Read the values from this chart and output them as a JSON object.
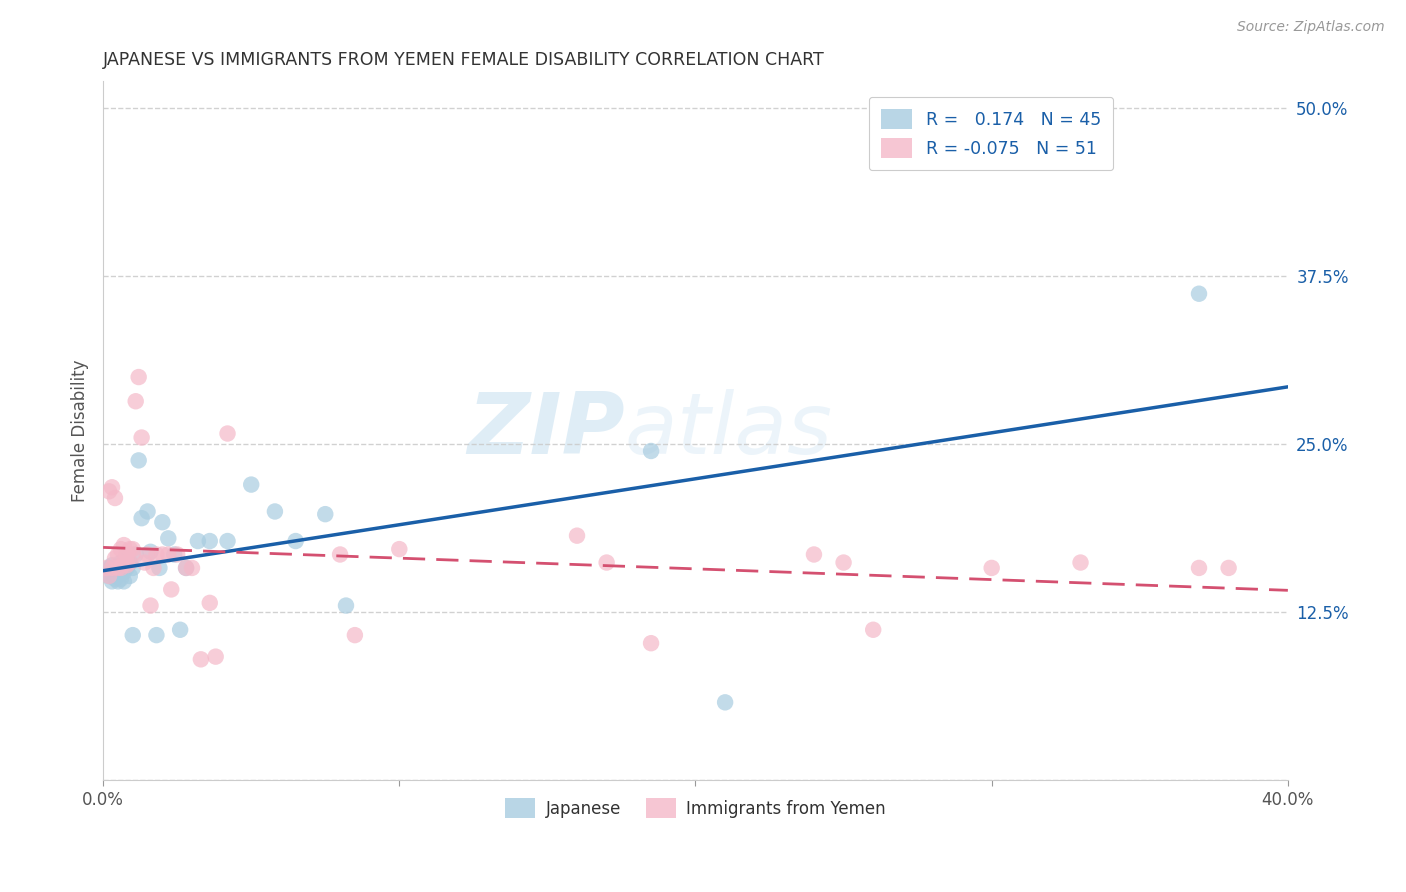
{
  "title": "JAPANESE VS IMMIGRANTS FROM YEMEN FEMALE DISABILITY CORRELATION CHART",
  "source": "Source: ZipAtlas.com",
  "ylabel": "Female Disability",
  "yticks": [
    0.0,
    0.125,
    0.25,
    0.375,
    0.5
  ],
  "ytick_labels": [
    "",
    "12.5%",
    "25.0%",
    "37.5%",
    "50.0%"
  ],
  "xmin": 0.0,
  "xmax": 0.4,
  "ymin": 0.0,
  "ymax": 0.52,
  "legend_r_japanese": "0.174",
  "legend_n_japanese": "45",
  "legend_r_yemen": "-0.075",
  "legend_n_yemen": "51",
  "watermark_zip": "ZIP",
  "watermark_atlas": "atlas",
  "japanese_color": "#a8cce0",
  "yemen_color": "#f4b8c8",
  "japanese_line_color": "#1a5fa8",
  "yemen_line_color": "#d45070",
  "japanese_scatter_x": [
    0.001,
    0.002,
    0.002,
    0.003,
    0.003,
    0.004,
    0.004,
    0.005,
    0.005,
    0.005,
    0.006,
    0.006,
    0.006,
    0.007,
    0.007,
    0.007,
    0.008,
    0.008,
    0.009,
    0.009,
    0.01,
    0.01,
    0.011,
    0.012,
    0.013,
    0.015,
    0.016,
    0.018,
    0.019,
    0.02,
    0.022,
    0.024,
    0.026,
    0.028,
    0.032,
    0.036,
    0.042,
    0.05,
    0.058,
    0.065,
    0.075,
    0.082,
    0.185,
    0.21,
    0.37
  ],
  "japanese_scatter_y": [
    0.155,
    0.152,
    0.158,
    0.148,
    0.16,
    0.15,
    0.158,
    0.148,
    0.153,
    0.158,
    0.15,
    0.155,
    0.162,
    0.148,
    0.155,
    0.162,
    0.158,
    0.167,
    0.152,
    0.162,
    0.158,
    0.108,
    0.168,
    0.238,
    0.195,
    0.2,
    0.17,
    0.108,
    0.158,
    0.192,
    0.18,
    0.168,
    0.112,
    0.158,
    0.178,
    0.178,
    0.178,
    0.22,
    0.2,
    0.178,
    0.198,
    0.13,
    0.245,
    0.058,
    0.362
  ],
  "yemen_scatter_x": [
    0.001,
    0.002,
    0.002,
    0.003,
    0.003,
    0.004,
    0.004,
    0.005,
    0.005,
    0.006,
    0.006,
    0.007,
    0.007,
    0.008,
    0.008,
    0.008,
    0.009,
    0.009,
    0.01,
    0.01,
    0.011,
    0.012,
    0.013,
    0.014,
    0.015,
    0.016,
    0.017,
    0.018,
    0.02,
    0.022,
    0.023,
    0.025,
    0.028,
    0.03,
    0.033,
    0.036,
    0.038,
    0.042,
    0.08,
    0.085,
    0.1,
    0.16,
    0.17,
    0.185,
    0.24,
    0.25,
    0.26,
    0.3,
    0.33,
    0.37,
    0.38
  ],
  "yemen_scatter_y": [
    0.158,
    0.152,
    0.215,
    0.218,
    0.158,
    0.21,
    0.165,
    0.158,
    0.168,
    0.158,
    0.172,
    0.162,
    0.175,
    0.16,
    0.168,
    0.162,
    0.172,
    0.162,
    0.172,
    0.168,
    0.282,
    0.3,
    0.255,
    0.162,
    0.168,
    0.13,
    0.158,
    0.168,
    0.168,
    0.168,
    0.142,
    0.168,
    0.158,
    0.158,
    0.09,
    0.132,
    0.092,
    0.258,
    0.168,
    0.108,
    0.172,
    0.182,
    0.162,
    0.102,
    0.168,
    0.162,
    0.112,
    0.158,
    0.162,
    0.158,
    0.158
  ]
}
